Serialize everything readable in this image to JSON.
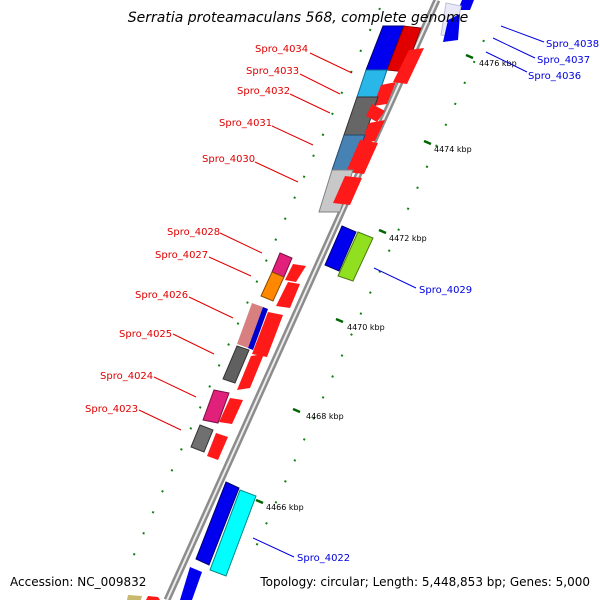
{
  "title": "Serratia proteamaculans 568, complete genome",
  "accession": "Accession: NC_009832",
  "topology": "Topology: circular; Length: 5,448,853 bp; Genes: 5,000",
  "colors": {
    "forward_label": "#e00000",
    "reverse_label": "#0000e0",
    "backbone": "#808080",
    "tick": "#008000"
  },
  "ticks": [
    "4466 kbp",
    "4468 kbp",
    "4470 kbp",
    "4472 kbp",
    "4474 kbp",
    "4476 kbp"
  ],
  "genes": [
    {
      "id": "Spro_4022",
      "strand": "reverse",
      "color": "#00ffff"
    },
    {
      "id": "Spro_4023",
      "strand": "forward",
      "color": "#707070"
    },
    {
      "id": "Spro_4024",
      "strand": "forward",
      "color": "#e0207a"
    },
    {
      "id": "Spro_4025",
      "strand": "forward",
      "color": "#606060"
    },
    {
      "id": "Spro_4026",
      "strand": "forward",
      "color": "#d88080"
    },
    {
      "id": "Spro_4027",
      "strand": "forward",
      "color": "#ff8800"
    },
    {
      "id": "Spro_4028",
      "strand": "forward",
      "color": "#e0207a"
    },
    {
      "id": "Spro_4029",
      "strand": "reverse",
      "color": "#90e020"
    },
    {
      "id": "Spro_4030",
      "strand": "forward",
      "color": "#c8c8c8"
    },
    {
      "id": "Spro_4031",
      "strand": "forward",
      "color": "#4682b4"
    },
    {
      "id": "Spro_4032",
      "strand": "forward",
      "color": "#666666"
    },
    {
      "id": "Spro_4033",
      "strand": "forward",
      "color": "#29b6e8"
    },
    {
      "id": "Spro_4034",
      "strand": "forward",
      "color": "#0000ee"
    },
    {
      "id": "Spro_4036",
      "strand": "reverse",
      "color": "#0000ee"
    },
    {
      "id": "Spro_4037",
      "strand": "reverse",
      "color": "#0000ee"
    },
    {
      "id": "Spro_4038",
      "strand": "reverse",
      "color": "#0000ee"
    }
  ]
}
